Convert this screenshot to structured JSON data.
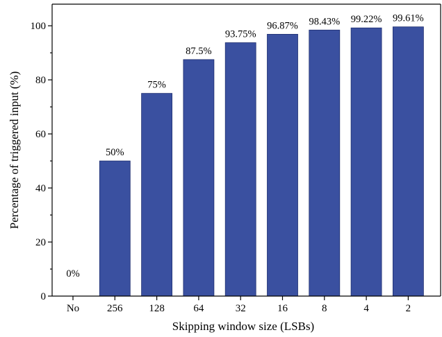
{
  "chart_data": {
    "type": "bar",
    "title": "",
    "xlabel": "Skipping window size (LSBs)",
    "ylabel": "Percentage of triggered input (%)",
    "categories": [
      "No",
      "256",
      "128",
      "64",
      "32",
      "16",
      "8",
      "4",
      "2"
    ],
    "values": [
      0,
      50,
      75,
      87.5,
      93.75,
      96.87,
      98.43,
      99.22,
      99.61
    ],
    "data_labels": [
      "0%",
      "50%",
      "75%",
      "87.5%",
      "93.75%",
      "96.87%",
      "98.43%",
      "99.22%",
      "99.61%"
    ],
    "ylim": [
      0,
      108
    ],
    "yticks": [
      0,
      20,
      40,
      60,
      80,
      100
    ],
    "bar_color": "#3a50a0",
    "grid": false,
    "legend": "none"
  }
}
